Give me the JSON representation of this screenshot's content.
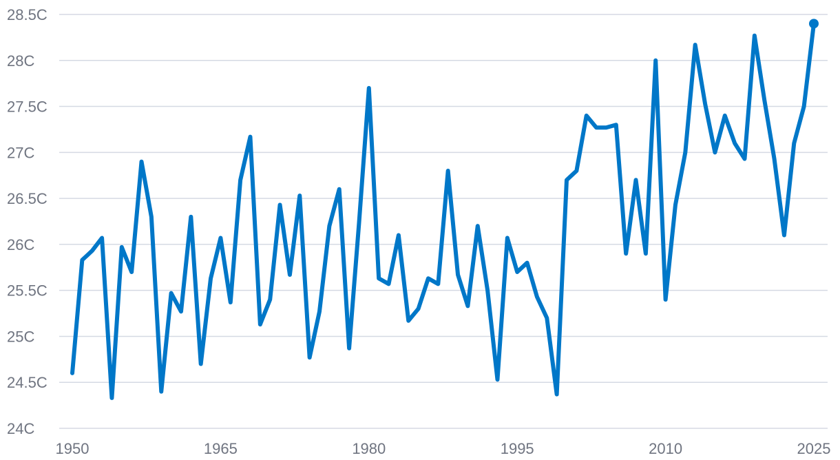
{
  "chart_data": {
    "type": "line",
    "title": "",
    "xlabel": "",
    "ylabel": "",
    "xlim": [
      1950,
      2025
    ],
    "ylim": [
      24,
      28.5
    ],
    "x_ticks": [
      1950,
      1965,
      1980,
      1995,
      2010,
      2025
    ],
    "y_ticks": [
      24,
      24.5,
      25,
      25.5,
      26,
      26.5,
      27,
      27.5,
      28,
      28.5
    ],
    "y_tick_labels": [
      "24C",
      "24.5C",
      "25C",
      "25.5C",
      "26C",
      "26.5C",
      "27C",
      "27.5C",
      "28C",
      "28.5C"
    ],
    "grid": true,
    "legend": "none",
    "colors": {
      "line": "#0077c8",
      "grid": "#d5d9e3",
      "tick_text": "#6f7480"
    },
    "x": [
      1950,
      1951,
      1952,
      1953,
      1954,
      1955,
      1956,
      1957,
      1958,
      1959,
      1960,
      1961,
      1962,
      1963,
      1964,
      1965,
      1966,
      1967,
      1968,
      1969,
      1970,
      1971,
      1972,
      1973,
      1974,
      1975,
      1976,
      1977,
      1978,
      1979,
      1980,
      1981,
      1982,
      1983,
      1984,
      1985,
      1986,
      1987,
      1988,
      1989,
      1990,
      1991,
      1992,
      1993,
      1994,
      1995,
      1996,
      1997,
      1998,
      1999,
      2000,
      2001,
      2002,
      2003,
      2004,
      2005,
      2006,
      2007,
      2008,
      2009,
      2010,
      2011,
      2012,
      2013,
      2014,
      2015,
      2016,
      2017,
      2018,
      2019,
      2020,
      2021,
      2022,
      2023,
      2024,
      2025
    ],
    "series": [
      {
        "values": [
          24.6,
          25.83,
          25.93,
          26.07,
          24.33,
          25.97,
          25.7,
          26.9,
          26.3,
          24.4,
          25.47,
          25.27,
          26.3,
          24.7,
          25.63,
          26.07,
          25.37,
          26.7,
          27.17,
          25.13,
          25.4,
          26.43,
          25.67,
          26.53,
          24.77,
          25.27,
          26.2,
          26.6,
          24.87,
          26.23,
          27.7,
          25.63,
          25.57,
          26.1,
          25.17,
          25.3,
          25.63,
          25.57,
          26.8,
          25.67,
          25.33,
          26.2,
          25.5,
          24.53,
          26.07,
          25.7,
          25.8,
          25.43,
          25.2,
          24.37,
          26.7,
          26.8,
          27.4,
          27.27,
          27.27,
          27.3,
          25.9,
          26.7,
          25.9,
          28.0,
          25.4,
          26.43,
          27.0,
          28.17,
          27.53,
          27.0,
          27.4,
          27.1,
          26.93,
          28.27,
          27.57,
          26.93,
          26.1,
          27.1,
          27.5,
          28.4
        ]
      }
    ]
  }
}
